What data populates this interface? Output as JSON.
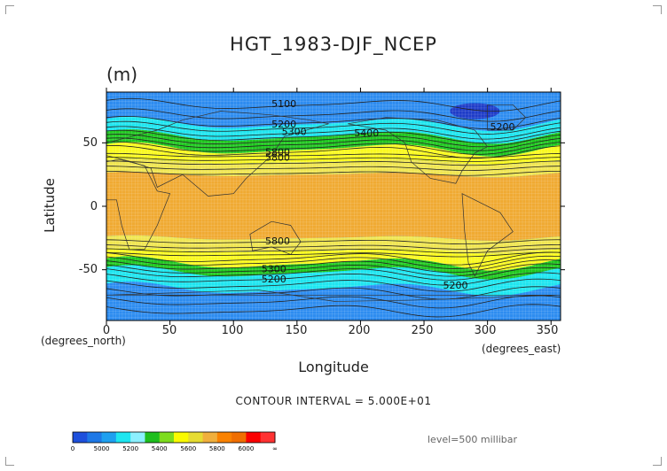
{
  "chart_data": {
    "type": "heatmap",
    "title": "HGT_1983-DJF_NCEP",
    "units": "(m)",
    "xlabel": "Longitude",
    "ylabel": "Latitude",
    "x_note": "(degrees_east)",
    "y_note": "(degrees_north)",
    "xlim": [
      0,
      357.5
    ],
    "ylim": [
      -90,
      90
    ],
    "x_ticks": [
      "0",
      "50",
      "100",
      "150",
      "200",
      "250",
      "300",
      "350"
    ],
    "y_ticks": [
      "50",
      "0",
      "-50"
    ],
    "contour_labels": [
      "5100",
      "5200",
      "5300",
      "5400",
      "5200",
      "5800",
      "5800",
      "5800",
      "5200",
      "5300",
      "5200"
    ],
    "bands_by_latitude": [
      {
        "lat_min": 65,
        "lat_max": 90,
        "value_min": 5000,
        "value_max": 5200
      },
      {
        "lat_min": 55,
        "lat_max": 65,
        "value_min": 5200,
        "value_max": 5400
      },
      {
        "lat_min": 45,
        "lat_max": 55,
        "value_min": 5400,
        "value_max": 5600
      },
      {
        "lat_min": 35,
        "lat_max": 45,
        "value_min": 5600,
        "value_max": 5800
      },
      {
        "lat_min": 25,
        "lat_max": 35,
        "value_min": 5800,
        "value_max": 5800
      },
      {
        "lat_min": -25,
        "lat_max": 25,
        "value_min": 5800,
        "value_max": 6000
      },
      {
        "lat_min": -35,
        "lat_max": -25,
        "value_min": 5800,
        "value_max": 5800
      },
      {
        "lat_min": -45,
        "lat_max": -35,
        "value_min": 5600,
        "value_max": 5800
      },
      {
        "lat_min": -52,
        "lat_max": -45,
        "value_min": 5400,
        "value_max": 5600
      },
      {
        "lat_min": -65,
        "lat_max": -52,
        "value_min": 5200,
        "value_max": 5400
      },
      {
        "lat_min": -90,
        "lat_max": -65,
        "value_min": 5000,
        "value_max": 5200
      }
    ],
    "contour_interval_text": "CONTOUR INTERVAL = 5.000E+01",
    "level_text": "level=500 millibar",
    "colorbar": {
      "labels": [
        "0",
        "5000",
        "5200",
        "5400",
        "5600",
        "5800",
        "6000",
        "∞"
      ],
      "colors": [
        "#1e50dc",
        "#1e78e6",
        "#1ea0f0",
        "#1ee6f0",
        "#8cf0ff",
        "#1ebe1e",
        "#7ddc1e",
        "#fafa00",
        "#e6dc32",
        "#f0af3c",
        "#fa8200",
        "#f06e00",
        "#fa0000",
        "#ff3232"
      ]
    }
  },
  "fill_colors": {
    "polar_deep": "#1e3cc8",
    "blue": "#2d8cf0",
    "cyan": "#1ee6f0",
    "light_cyan": "#8cf0ff",
    "green": "#1ec81e",
    "light_green": "#8ce632",
    "yellow": "#fafa1e",
    "light_yellow": "#f0e650",
    "orange": "#f0aa32",
    "land_line": "#222222"
  }
}
